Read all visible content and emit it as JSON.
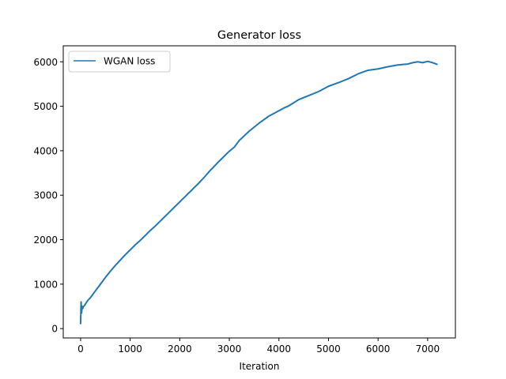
{
  "chart_data": {
    "type": "line",
    "title": "Generator loss",
    "xlabel": "Iteration",
    "ylabel": "",
    "xlim": [
      -350,
      7560
    ],
    "ylim": [
      -210,
      6360
    ],
    "xticks": [
      0,
      1000,
      2000,
      3000,
      4000,
      5000,
      6000,
      7000
    ],
    "yticks": [
      0,
      1000,
      2000,
      3000,
      4000,
      5000,
      6000
    ],
    "xtick_labels": [
      "0",
      "1000",
      "2000",
      "3000",
      "4000",
      "5000",
      "6000",
      "7000"
    ],
    "ytick_labels": [
      "0",
      "1000",
      "2000",
      "3000",
      "4000",
      "5000",
      "6000"
    ],
    "grid": false,
    "legend": {
      "placement": "top-left",
      "entries": [
        "WGAN loss"
      ]
    },
    "series": [
      {
        "name": "WGAN loss",
        "color": "#1f77b4",
        "x": [
          0,
          10,
          20,
          30,
          40,
          60,
          80,
          100,
          150,
          200,
          300,
          400,
          500,
          600,
          700,
          800,
          900,
          1000,
          1100,
          1200,
          1300,
          1400,
          1500,
          1600,
          1700,
          1800,
          1900,
          2000,
          2200,
          2400,
          2500,
          2600,
          2800,
          3000,
          3100,
          3200,
          3400,
          3600,
          3800,
          4000,
          4100,
          4200,
          4400,
          4600,
          4800,
          5000,
          5200,
          5400,
          5600,
          5800,
          6000,
          6200,
          6400,
          6600,
          6700,
          6800,
          6900,
          7000,
          7100,
          7200
        ],
        "y": [
          100,
          600,
          350,
          500,
          450,
          500,
          520,
          560,
          640,
          700,
          850,
          1000,
          1150,
          1290,
          1420,
          1540,
          1660,
          1770,
          1880,
          1980,
          2090,
          2200,
          2300,
          2410,
          2520,
          2630,
          2740,
          2850,
          3070,
          3290,
          3410,
          3540,
          3770,
          3990,
          4080,
          4230,
          4440,
          4620,
          4780,
          4900,
          4960,
          5010,
          5150,
          5240,
          5330,
          5450,
          5530,
          5620,
          5730,
          5810,
          5840,
          5890,
          5930,
          5950,
          5980,
          6000,
          5980,
          6010,
          5980,
          5940
        ]
      }
    ]
  }
}
